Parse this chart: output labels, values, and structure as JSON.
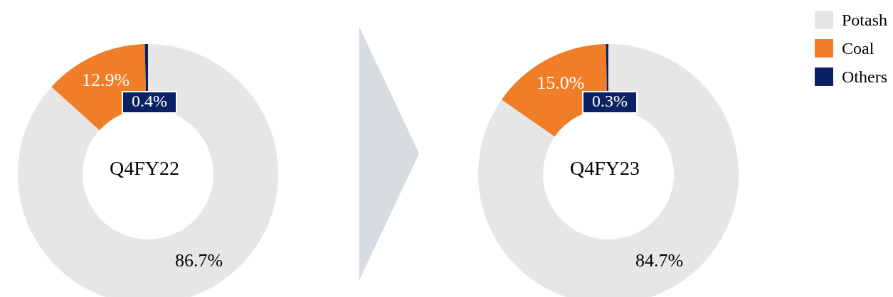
{
  "chart_data": [
    {
      "type": "donut",
      "title": "Q4FY22",
      "categories": [
        null,
        null,
        null
      ],
      "values": [
        86.7,
        12.9,
        0.4
      ],
      "colors": [
        "#e6e6e6",
        "#f07d28",
        "#0a2264"
      ],
      "value_labels": [
        "86.7%",
        "12.9%",
        "0.4%"
      ],
      "legend": false
    },
    {
      "type": "donut",
      "title": "Q4FY23",
      "categories": [
        "Potash",
        "Coal",
        "Others"
      ],
      "values": [
        84.7,
        15.0,
        0.3
      ],
      "colors": [
        "#e6e6e6",
        "#f07d28",
        "#0a2264"
      ],
      "value_labels": [
        "84.7%",
        "15.0%",
        "0.3%"
      ],
      "legend": "top right"
    }
  ]
}
